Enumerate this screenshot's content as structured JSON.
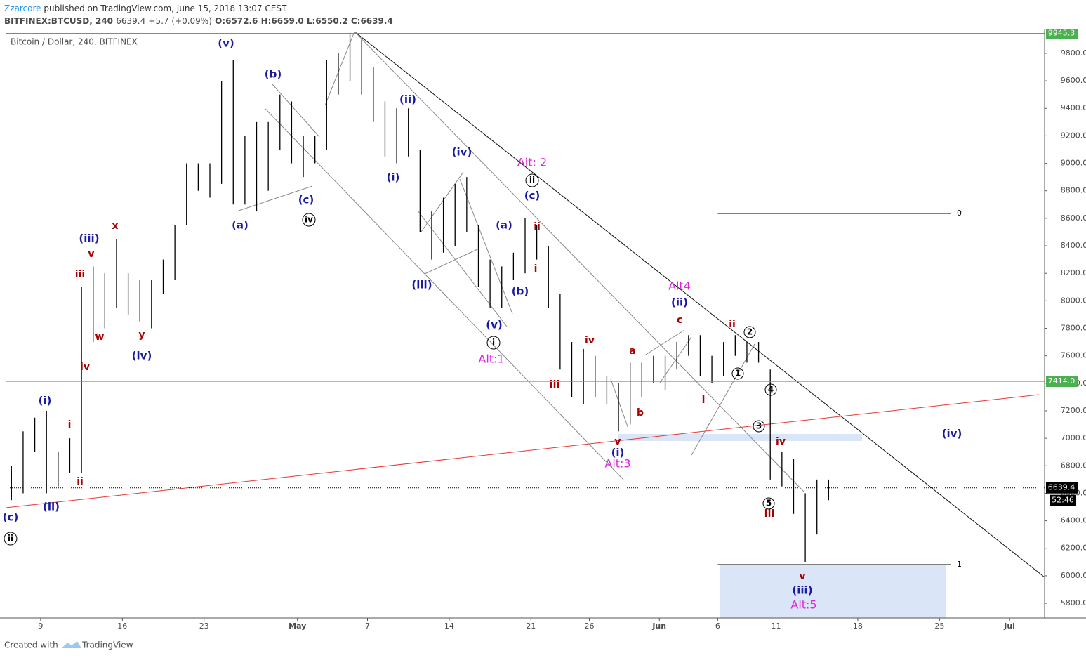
{
  "header": {
    "author": "Zzarcore",
    "published": "published on TradingView.com, June 15, 2018 13:07 CEST",
    "symbol": "BITFINEX:BTCUSD, 240",
    "last": "6639.4",
    "change": "+5.7 (+0.09%)",
    "ohlc": "O:6572.6 H:6659.0 L:6550.2 C:6639.4",
    "countdown": "52:46",
    "created": "Created with",
    "brand": "TradingView"
  },
  "chart_data": {
    "type": "range-bar",
    "title": "Bitcoin / Dollar, 240, BITFINEX",
    "color": "#000000",
    "grid": false,
    "x": [
      "04-06",
      "04-07",
      "04-08",
      "04-09",
      "04-10",
      "04-11",
      "04-12",
      "04-13",
      "04-14",
      "04-15",
      "04-16",
      "04-17",
      "04-18",
      "04-19",
      "04-20",
      "04-21",
      "04-22",
      "04-23",
      "04-24",
      "04-25",
      "04-26",
      "04-27",
      "04-28",
      "04-29",
      "04-30",
      "05-01",
      "05-02",
      "05-03",
      "05-04",
      "05-05",
      "05-06",
      "05-07",
      "05-08",
      "05-09",
      "05-10",
      "05-11",
      "05-12",
      "05-13",
      "05-14",
      "05-15",
      "05-16",
      "05-17",
      "05-18",
      "05-19",
      "05-20",
      "05-21",
      "05-22",
      "05-23",
      "05-24",
      "05-25",
      "05-26",
      "05-27",
      "05-28",
      "05-29",
      "05-30",
      "05-31",
      "06-01",
      "06-02",
      "06-03",
      "06-04",
      "06-05",
      "06-06",
      "06-07",
      "06-08",
      "06-09",
      "06-10",
      "06-11",
      "06-12",
      "06-13",
      "06-14",
      "06-15"
    ],
    "low": [
      6550,
      6600,
      6900,
      6600,
      6650,
      6750,
      6750,
      7700,
      7800,
      7950,
      7900,
      7850,
      7800,
      8050,
      8150,
      8550,
      8800,
      8750,
      8850,
      8700,
      8700,
      8650,
      8800,
      9100,
      9000,
      8900,
      9000,
      9100,
      9500,
      9600,
      9500,
      9300,
      9050,
      9000,
      9050,
      8500,
      8300,
      8350,
      8400,
      8500,
      8100,
      7950,
      7950,
      8150,
      8200,
      8300,
      7950,
      7500,
      7300,
      7250,
      7300,
      7250,
      7050,
      7100,
      7300,
      7400,
      7350,
      7500,
      7600,
      7450,
      7400,
      7450,
      7600,
      7550,
      7550,
      6700,
      6650,
      6450,
      6100,
      6300,
      6550
    ],
    "high": [
      6800,
      7050,
      7150,
      7200,
      6900,
      7000,
      8100,
      8250,
      8200,
      8450,
      8200,
      8150,
      8150,
      8300,
      8550,
      9000,
      9000,
      9000,
      9600,
      9750,
      9200,
      9300,
      9300,
      9500,
      9450,
      9200,
      9200,
      9750,
      9800,
      9950,
      9900,
      9700,
      9450,
      9400,
      9400,
      9100,
      8650,
      8750,
      8850,
      8900,
      8550,
      8300,
      8250,
      8350,
      8600,
      8550,
      8400,
      8050,
      7700,
      7650,
      7600,
      7450,
      7400,
      7550,
      7550,
      7600,
      7600,
      7700,
      7750,
      7750,
      7600,
      7700,
      7750,
      7700,
      7700,
      7500,
      6900,
      6850,
      6600,
      6700,
      6700
    ],
    "xlim": [
      "04-06",
      "07-04"
    ],
    "xticks": [
      {
        "value": "04-09",
        "label": "9"
      },
      {
        "value": "04-16",
        "label": "16"
      },
      {
        "value": "04-23",
        "label": "23"
      },
      {
        "value": "05-01",
        "label": "May"
      },
      {
        "value": "05-07",
        "label": "7"
      },
      {
        "value": "05-14",
        "label": "14"
      },
      {
        "value": "05-21",
        "label": "21"
      },
      {
        "value": "05-26",
        "label": "26"
      },
      {
        "value": "06-01",
        "label": "Jun"
      },
      {
        "value": "06-06",
        "label": "6"
      },
      {
        "value": "06-11",
        "label": "11"
      },
      {
        "value": "06-18",
        "label": "18"
      },
      {
        "value": "06-25",
        "label": "25"
      },
      {
        "value": "07-01",
        "label": "Jul"
      }
    ],
    "ylim": [
      5693,
      9958
    ],
    "yticks": [
      {
        "value": 5800,
        "label": "5800.0"
      },
      {
        "value": 6000,
        "label": "6000.0"
      },
      {
        "value": 6200,
        "label": "6200.0"
      },
      {
        "value": 6400,
        "label": "6400.0"
      },
      {
        "value": 6600,
        "label": "6600.0"
      },
      {
        "value": 6800,
        "label": "6800.0"
      },
      {
        "value": 7000,
        "label": "7000.0"
      },
      {
        "value": 7200,
        "label": "7200.0"
      },
      {
        "value": 7400,
        "label": "7400.0"
      },
      {
        "value": 7600,
        "label": "7600.0"
      },
      {
        "value": 7800,
        "label": "7800.0"
      },
      {
        "value": 8000,
        "label": "8000.0"
      },
      {
        "value": 8200,
        "label": "8200.0"
      },
      {
        "value": 8400,
        "label": "8400.0"
      },
      {
        "value": 8600,
        "label": "8600.0"
      },
      {
        "value": 8800,
        "label": "8800.0"
      },
      {
        "value": 9000,
        "label": "9000.0"
      },
      {
        "value": 9200,
        "label": "9200.0"
      },
      {
        "value": 9400,
        "label": "9400.0"
      },
      {
        "value": 9600,
        "label": "9600.0"
      },
      {
        "value": 9800,
        "label": "9800.0"
      }
    ],
    "price_lines": [
      {
        "value": 9945.3,
        "label": "9945.3",
        "color": "#4caf50"
      },
      {
        "value": 7414,
        "label": "7414.0",
        "color": "#4caf50"
      },
      {
        "value": 6639.4,
        "label": "6639.4",
        "color": "#000000"
      }
    ],
    "fib": {
      "x": [
        "06-06",
        "06-26"
      ],
      "levels": [
        {
          "value": 8635,
          "label": "0"
        },
        {
          "value": 6081,
          "label": "1"
        }
      ]
    }
  },
  "labels": {
    "navy": [
      "(v)",
      "(b)",
      "(iii)",
      "(i)",
      "(ii)",
      "(c)",
      "(iv)",
      "(a)",
      "(c)",
      "(ii)",
      "(i)",
      "(iv)",
      "(c)",
      "(a)",
      "(b)",
      "(iii)",
      "(v)",
      "(ii)",
      "(i)",
      "(iii)",
      "(iv)"
    ],
    "red": [
      "x",
      "v",
      "iii",
      "w",
      "y",
      "iv",
      "i",
      "ii",
      "ii",
      "i",
      "iv",
      "iii",
      "a",
      "b",
      "c",
      "v",
      "i",
      "ii",
      "iv",
      "iii",
      "v"
    ],
    "magenta": [
      "Alt: 2",
      "Alt4",
      "Alt:1",
      "Alt:3",
      "Alt:5"
    ],
    "circled": [
      "ii",
      "iv",
      "i",
      "ii",
      "2",
      "1",
      "4",
      "3",
      "5"
    ]
  }
}
